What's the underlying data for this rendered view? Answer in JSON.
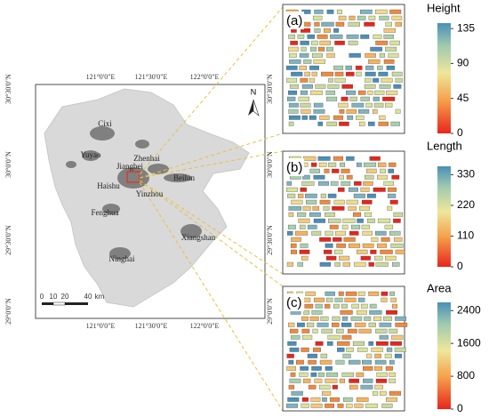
{
  "map": {
    "north_label": "N",
    "lon_labels_top": [
      "121°0'0\"E",
      "121°30'0\"E",
      "122°0'0\"E"
    ],
    "lon_labels_bottom": [
      "121°0'0\"E",
      "121°30'0\"E",
      "122°0'0\"E"
    ],
    "lat_labels_left": [
      "30°30'0\"N",
      "30°0'0\"N",
      "29°30'0\"N",
      "29°0'0\"N"
    ],
    "lat_labels_right": [
      "30°30'0\"N",
      "30°0'0\"N",
      "29°30'0\"N",
      "29°0'0\"N"
    ],
    "places": [
      "Cixi",
      "Yuyao",
      "Zhenhai",
      "Jiangbei",
      "Haishu",
      "Beilun",
      "Yinzhou",
      "Fenghua",
      "Xiangshan",
      "Ninghai"
    ],
    "scale_labels": [
      "0",
      "10",
      "20",
      "40",
      "km"
    ]
  },
  "panels": [
    {
      "label": "(a)",
      "legend": {
        "title": "Height",
        "lim": [
          0,
          142
        ],
        "ticks": [
          0,
          45,
          90,
          135
        ]
      }
    },
    {
      "label": "(b)",
      "legend": {
        "title": "Length",
        "lim": [
          0,
          360
        ],
        "ticks": [
          0,
          110,
          220,
          330
        ]
      }
    },
    {
      "label": "(c)",
      "legend": {
        "title": "Area",
        "lim": [
          0,
          2600
        ],
        "ticks": [
          0,
          800,
          1600,
          2400
        ]
      }
    }
  ]
}
